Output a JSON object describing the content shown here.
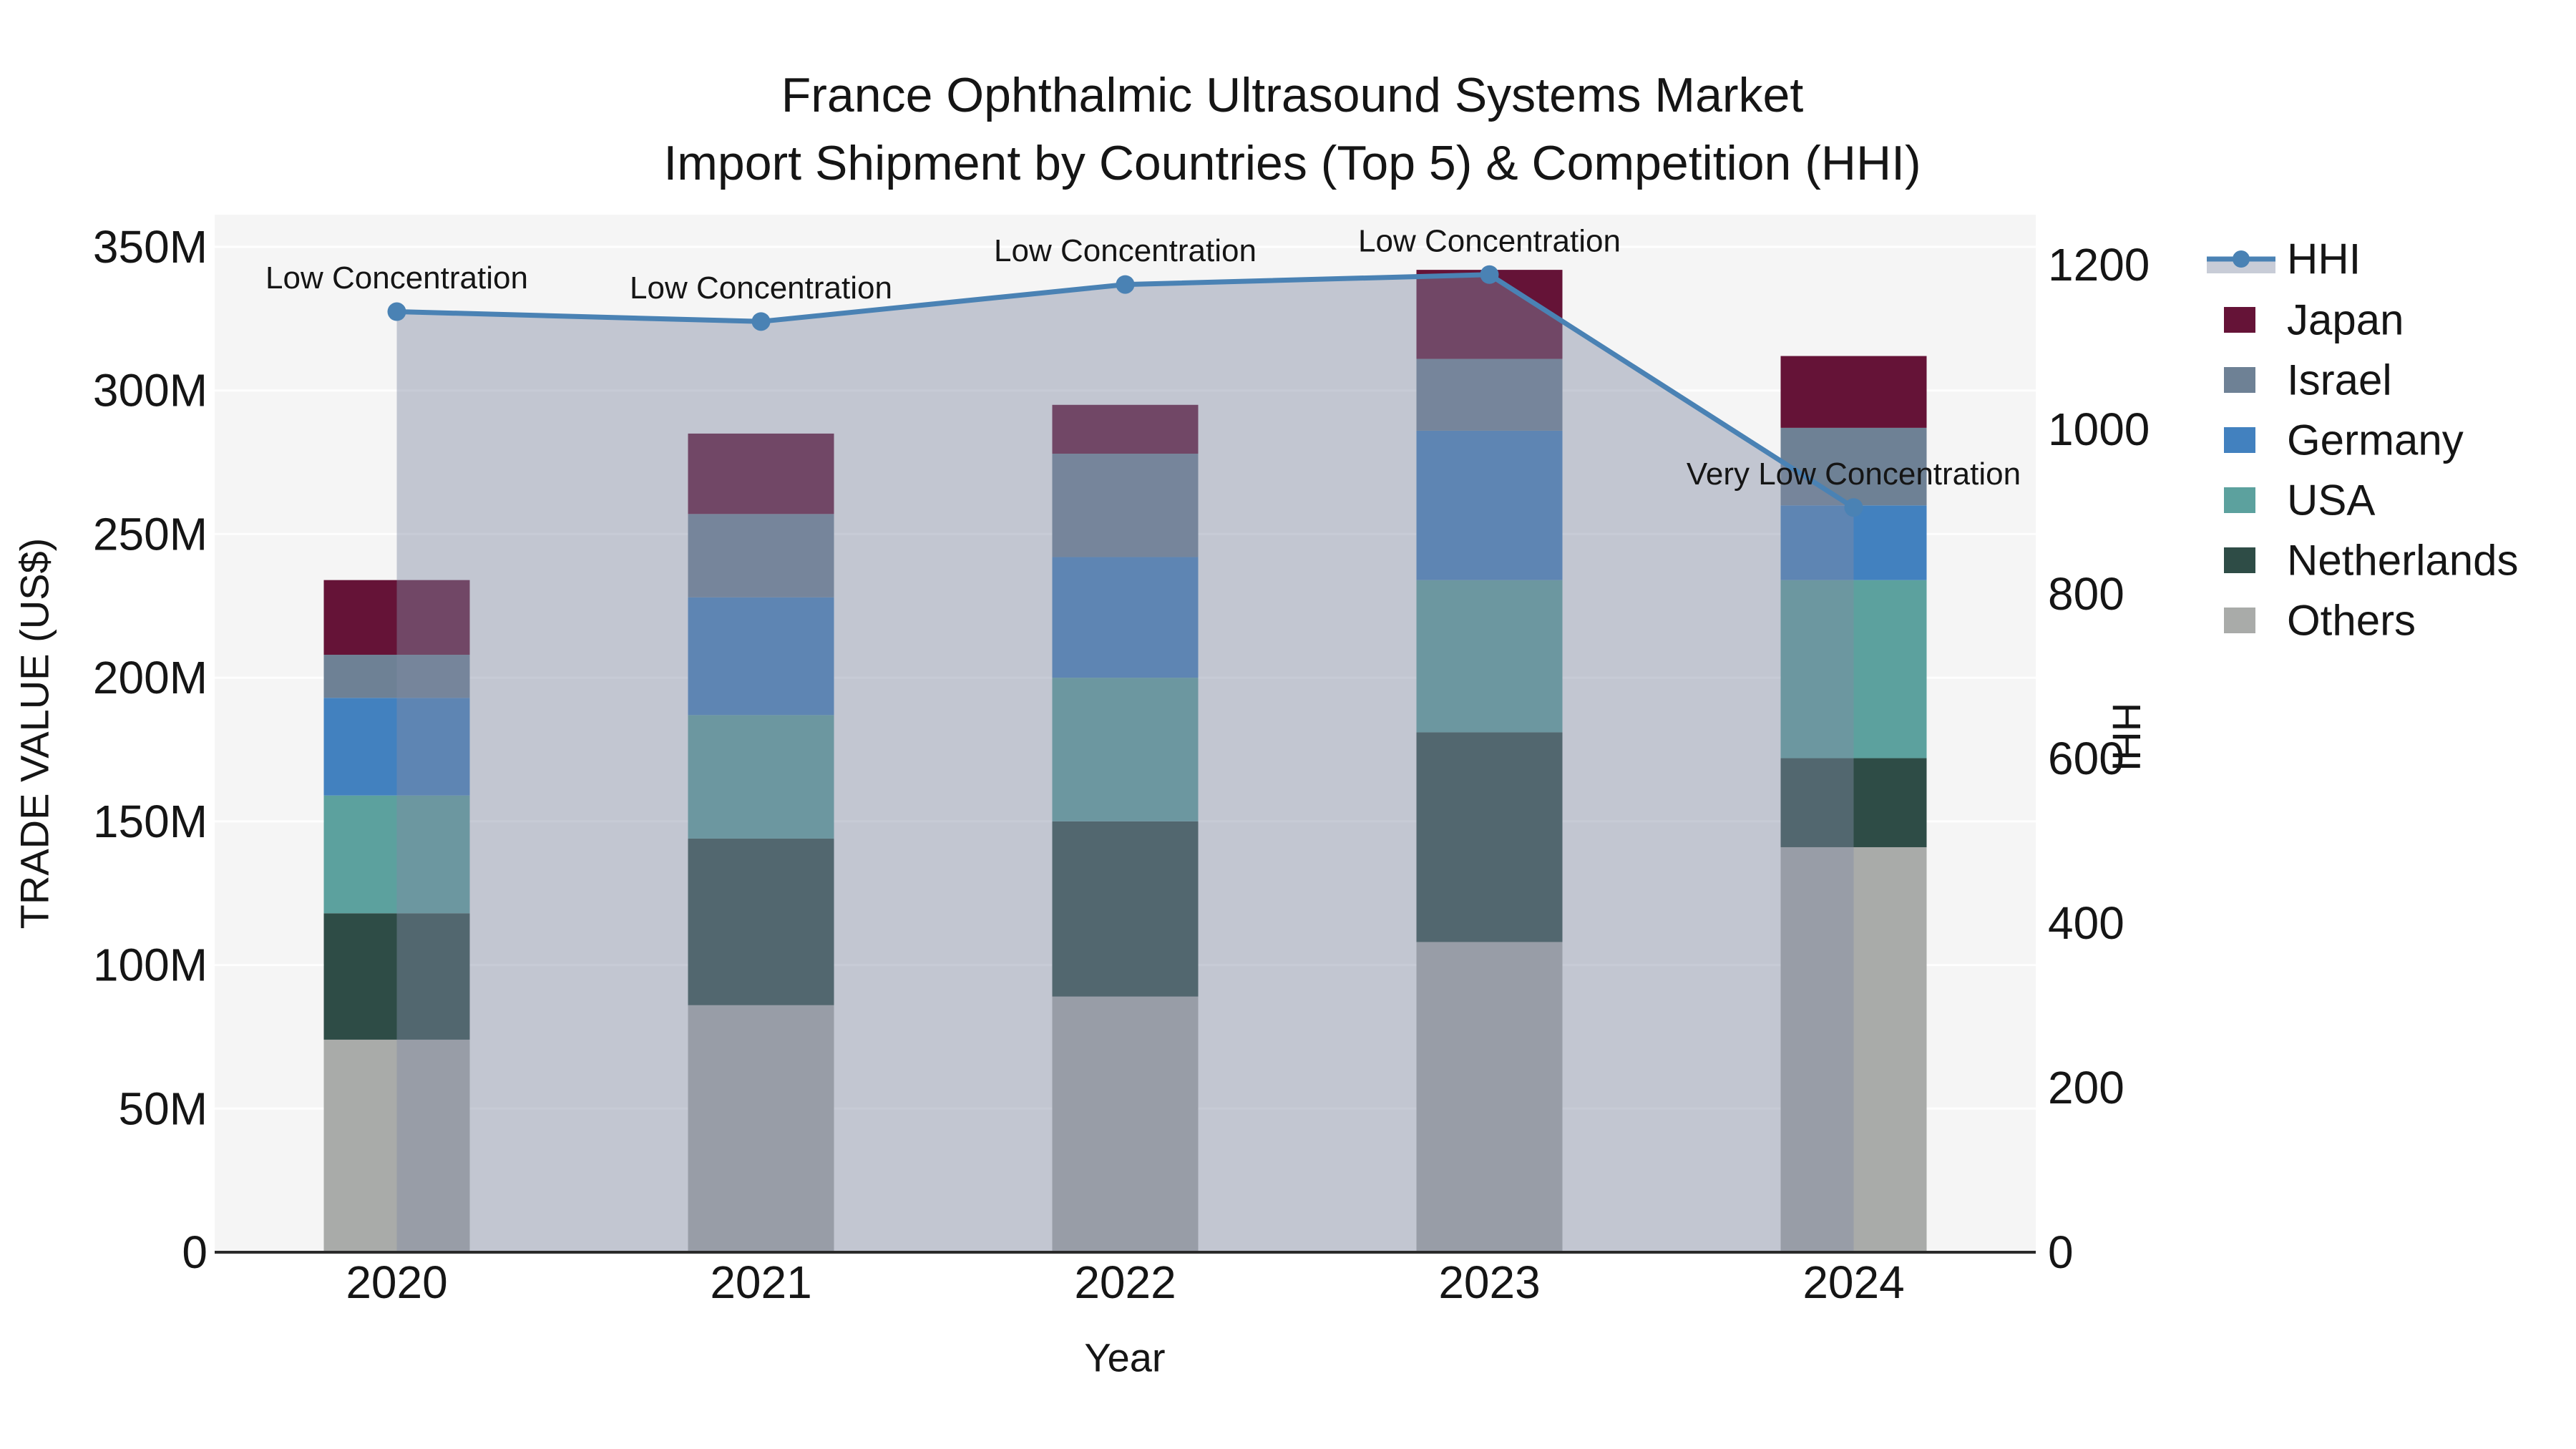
{
  "title": {
    "line1": "France Ophthalmic Ultrasound Systems Market",
    "line2": "Import Shipment by Countries (Top 5) & Competition (HHI)"
  },
  "axes": {
    "x_title": "Year",
    "y_left_title": "TRADE VALUE (US$)",
    "y_right_title": "HHI",
    "x_tick_labels": [
      "2020",
      "2021",
      "2022",
      "2023",
      "2024"
    ],
    "y_left_tick_labels": [
      "0",
      "50M",
      "100M",
      "150M",
      "200M",
      "250M",
      "300M",
      "350M"
    ],
    "y_right_tick_labels": [
      "0",
      "200",
      "400",
      "600",
      "800",
      "1000",
      "1200"
    ]
  },
  "chart_data": {
    "type": "stacked-bar+line",
    "categories": [
      "2020",
      "2021",
      "2022",
      "2023",
      "2024"
    ],
    "bar_value_unit": "million US$ (left axis, 0-350M)",
    "y_left_range_millions": [
      0,
      350
    ],
    "y_left_tick_step_millions": 50,
    "y_right_range": [
      0,
      1200
    ],
    "y_right_tick_step": 200,
    "grid": "horizontal white gridlines at 50M steps",
    "legend_position": "right",
    "stack_bottom_to_top": [
      "Others",
      "Netherlands",
      "USA",
      "Germany",
      "Israel",
      "Japan"
    ],
    "series": [
      {
        "name": "Japan",
        "color": "#651337",
        "values": [
          26,
          28,
          17,
          31,
          25
        ]
      },
      {
        "name": "Israel",
        "color": "#6e8195",
        "values": [
          15,
          29,
          36,
          25,
          27
        ]
      },
      {
        "name": "Germany",
        "color": "#4281bf",
        "values": [
          34,
          41,
          42,
          52,
          26
        ]
      },
      {
        "name": "USA",
        "color": "#5ca19e",
        "values": [
          41,
          43,
          50,
          53,
          62
        ]
      },
      {
        "name": "Netherlands",
        "color": "#2e4c46",
        "values": [
          44,
          58,
          61,
          73,
          31
        ]
      },
      {
        "name": "Others",
        "color": "#a9aba9",
        "values": [
          74,
          86,
          89,
          108,
          141
        ]
      }
    ],
    "hhi_line": {
      "name": "HHI",
      "color": "#4a82b4",
      "area_fill": "rgba(130,140,165,0.44)",
      "values": [
        1143,
        1131,
        1176,
        1188,
        905
      ]
    },
    "annotations": [
      {
        "category": "2020",
        "text": "Low Concentration"
      },
      {
        "category": "2021",
        "text": "Low Concentration"
      },
      {
        "category": "2022",
        "text": "Low Concentration"
      },
      {
        "category": "2023",
        "text": "Low Concentration"
      },
      {
        "category": "2024",
        "text": "Very Low Concentration"
      }
    ]
  },
  "legend": {
    "items": [
      {
        "label": "HHI",
        "type": "line"
      },
      {
        "label": "Japan",
        "type": "patch",
        "color": "#651337"
      },
      {
        "label": "Israel",
        "type": "patch",
        "color": "#6e8195"
      },
      {
        "label": "Germany",
        "type": "patch",
        "color": "#4281bf"
      },
      {
        "label": "USA",
        "type": "patch",
        "color": "#5ca19e"
      },
      {
        "label": "Netherlands",
        "type": "patch",
        "color": "#2e4c46"
      },
      {
        "label": "Others",
        "type": "patch",
        "color": "#a9aba9"
      }
    ]
  },
  "colors": {
    "page_bg": "#ffffff",
    "plot_bg": "#f5f5f5",
    "gridline": "#ffffff",
    "axis_line": "#2a2a2a",
    "text": "#151515"
  }
}
